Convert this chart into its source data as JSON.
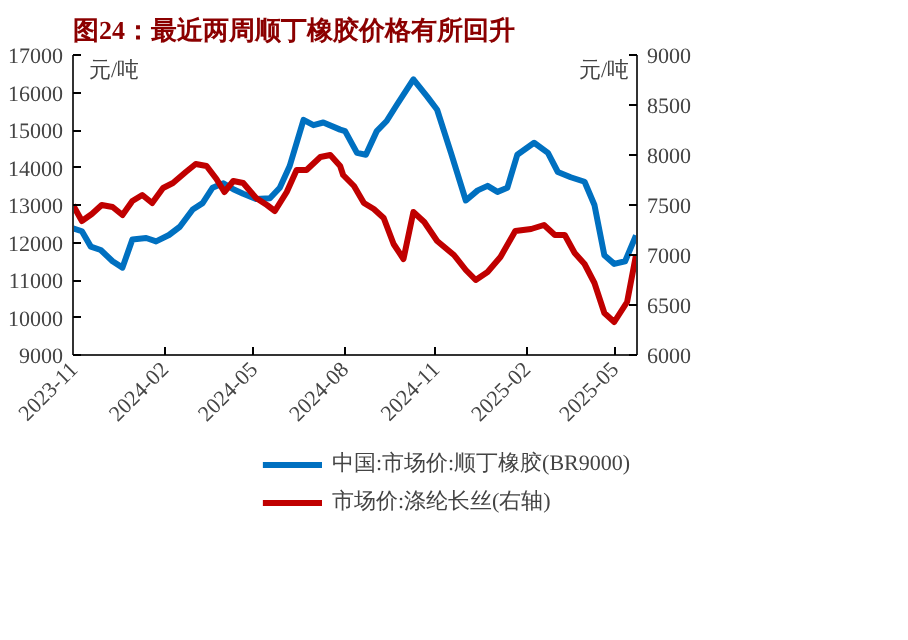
{
  "chart_data": {
    "type": "line",
    "title": "图24：最近两周顺丁橡胶价格有所回升",
    "ylabel": "元/吨",
    "y2label": "元/吨",
    "xlim": [
      "2023-11-01",
      "2025-05-24"
    ],
    "xticks": [
      "2023-11",
      "2024-02",
      "2024-05",
      "2024-08",
      "2024-11",
      "2025-02",
      "2025-05"
    ],
    "ylim": [
      9000,
      17000
    ],
    "yticks": [
      9000,
      10000,
      11000,
      12000,
      13000,
      14000,
      15000,
      16000,
      17000
    ],
    "y2lim": [
      6000,
      9000
    ],
    "y2ticks": [
      6000,
      6500,
      7000,
      7500,
      8000,
      8500,
      9000
    ],
    "grid": false,
    "legend": "bottom",
    "line_style": "solid",
    "marker": "none",
    "series": [
      {
        "name": "中国:市场价:顺丁橡胶(BR9000)",
        "color": "#0070c0",
        "x": [
          "2023-11-01",
          "2023-11-10",
          "2023-11-19",
          "2023-11-29",
          "2023-12-11",
          "2023-12-21",
          "2023-12-31",
          "2024-01-14",
          "2024-01-24",
          "2024-02-06",
          "2024-02-17",
          "2024-03-01",
          "2024-03-11",
          "2024-03-21",
          "2024-04-01",
          "2024-04-11",
          "2024-04-21",
          "2024-05-04",
          "2024-05-18",
          "2024-05-28",
          "2024-06-07",
          "2024-06-21",
          "2024-07-01",
          "2024-07-11",
          "2024-07-28",
          "2024-08-02",
          "2024-08-14",
          "2024-08-23",
          "2024-09-03",
          "2024-09-13",
          "2024-09-23",
          "2024-10-10",
          "2024-10-24",
          "2024-11-03",
          "2024-11-17",
          "2024-12-02",
          "2024-12-14",
          "2024-12-24",
          "2025-01-03",
          "2025-01-13",
          "2025-01-23",
          "2025-02-09",
          "2025-02-23",
          "2025-03-05",
          "2025-03-18",
          "2025-04-01",
          "2025-04-11",
          "2025-04-21",
          "2025-05-01",
          "2025-05-12",
          "2025-05-23"
        ],
        "values": [
          12380,
          12300,
          11890,
          11800,
          11500,
          11330,
          12080,
          12120,
          12030,
          12200,
          12420,
          12880,
          13050,
          13460,
          13580,
          13420,
          13300,
          13160,
          13180,
          13460,
          14040,
          15270,
          15130,
          15200,
          15010,
          14970,
          14390,
          14340,
          14970,
          15240,
          15660,
          16350,
          15890,
          15540,
          14390,
          13120,
          13390,
          13510,
          13350,
          13460,
          14340,
          14660,
          14390,
          13880,
          13740,
          13620,
          13000,
          11660,
          11430,
          11500,
          12190
        ]
      },
      {
        "name": "市场价:涤纶长丝(右轴)",
        "color": "#c00000",
        "axis": "y2",
        "x": [
          "2023-11-01",
          "2023-11-10",
          "2023-11-20",
          "2023-11-30",
          "2023-12-11",
          "2023-12-21",
          "2023-12-31",
          "2024-01-10",
          "2024-01-20",
          "2024-01-31",
          "2024-02-10",
          "2024-02-23",
          "2024-03-04",
          "2024-03-15",
          "2024-03-25",
          "2024-04-02",
          "2024-04-11",
          "2024-04-21",
          "2024-05-04",
          "2024-05-15",
          "2024-05-23",
          "2024-06-04",
          "2024-06-14",
          "2024-06-24",
          "2024-07-08",
          "2024-07-18",
          "2024-07-28",
          "2024-07-31",
          "2024-08-11",
          "2024-08-21",
          "2024-08-31",
          "2024-09-10",
          "2024-09-20",
          "2024-09-30",
          "2024-10-10",
          "2024-10-21",
          "2024-11-03",
          "2024-11-20",
          "2024-12-02",
          "2024-12-12",
          "2024-12-24",
          "2025-01-06",
          "2025-01-21",
          "2025-02-06",
          "2025-02-19",
          "2025-03-02",
          "2025-03-12",
          "2025-03-22",
          "2025-04-01",
          "2025-04-11",
          "2025-04-21",
          "2025-05-01",
          "2025-05-14",
          "2025-05-23"
        ],
        "values": [
          7500,
          7340,
          7410,
          7500,
          7480,
          7400,
          7540,
          7600,
          7520,
          7670,
          7720,
          7830,
          7910,
          7890,
          7760,
          7630,
          7740,
          7720,
          7570,
          7500,
          7440,
          7630,
          7850,
          7850,
          7980,
          8000,
          7890,
          7800,
          7690,
          7520,
          7460,
          7370,
          7110,
          6960,
          7430,
          7330,
          7140,
          7000,
          6850,
          6750,
          6830,
          6980,
          7240,
          7260,
          7300,
          7200,
          7200,
          7020,
          6910,
          6720,
          6420,
          6330,
          6530,
          7000
        ]
      }
    ]
  }
}
